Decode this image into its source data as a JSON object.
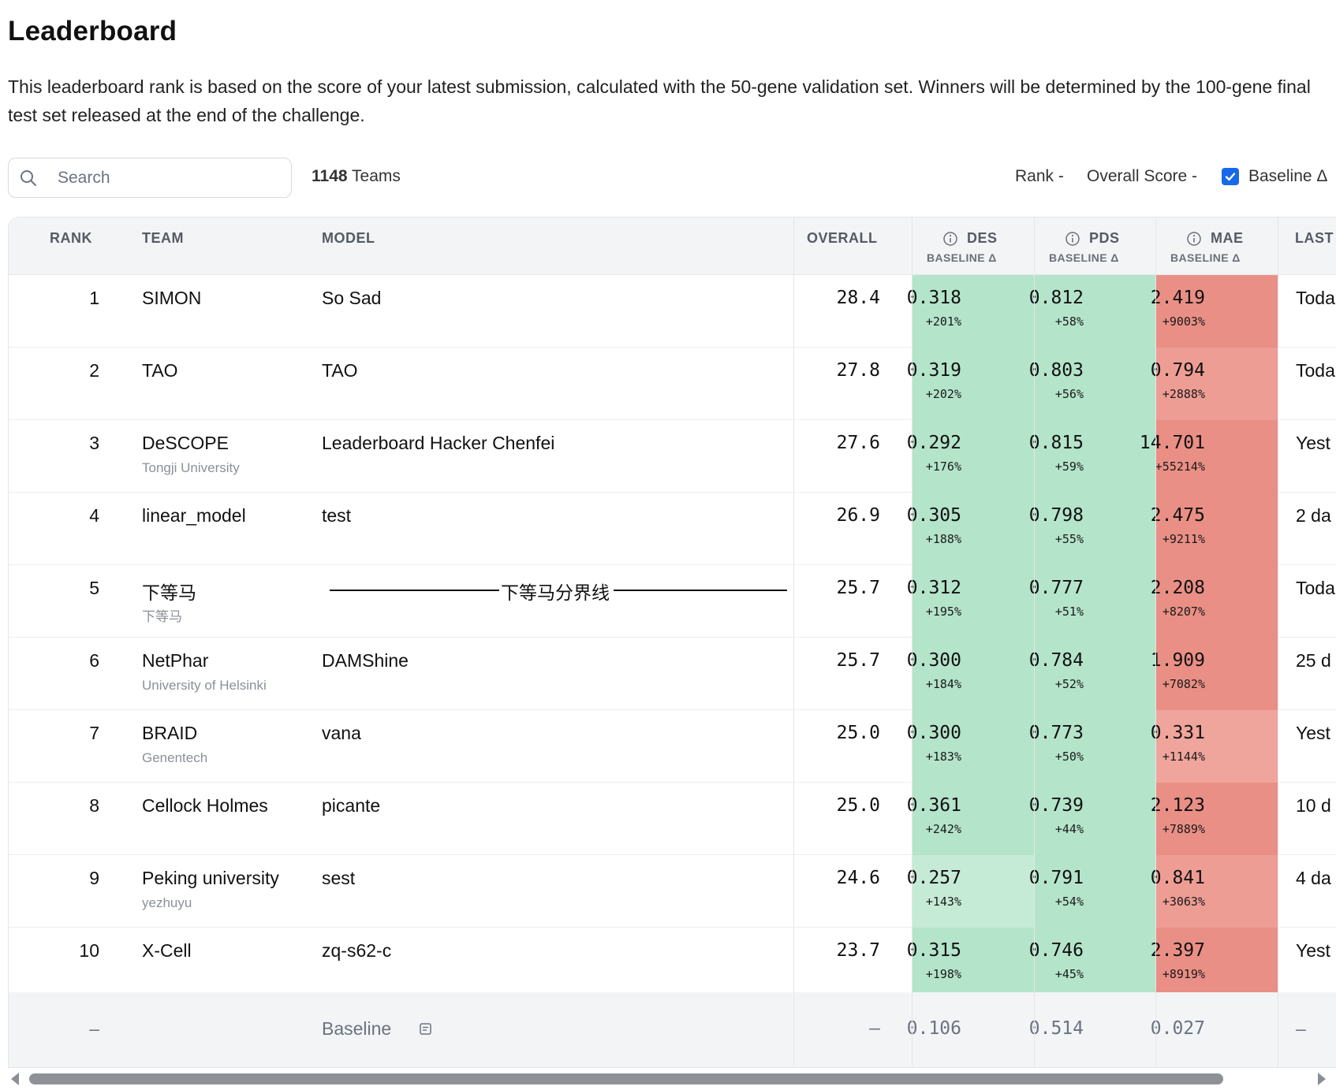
{
  "page": {
    "title": "Leaderboard",
    "description": "This leaderboard rank is based on the score of your latest submission, calculated with the 50-gene validation set. Winners will be determined by the 100-gene final test set released at the end of the challenge."
  },
  "toolbar": {
    "search_placeholder": "Search",
    "team_count": "1148",
    "team_count_suffix": " Teams",
    "sort_rank_label": "Rank -",
    "sort_overall_label": "Overall Score -",
    "baseline_toggle_label": "Baseline Δ",
    "baseline_checked": true
  },
  "table": {
    "headers": {
      "rank": "RANK",
      "team": "TEAM",
      "model": "MODEL",
      "overall": "OVERALL",
      "des": "DES",
      "pds": "PDS",
      "mae": "MAE",
      "metric_sub": "BASELINE Δ",
      "last": "LAST"
    },
    "rows": [
      {
        "rank": "1",
        "team": "SIMON",
        "affiliation": "",
        "model": "So Sad",
        "overall": "28.4",
        "des": "0.318",
        "des_delta": "+201%",
        "pds": "0.812",
        "pds_delta": "+58%",
        "mae": "2.419",
        "mae_delta": "+9003%",
        "last": "Toda"
      },
      {
        "rank": "2",
        "team": "TAO",
        "affiliation": "",
        "model": "TAO",
        "overall": "27.8",
        "des": "0.319",
        "des_delta": "+202%",
        "pds": "0.803",
        "pds_delta": "+56%",
        "mae": "0.794",
        "mae_delta": "+2888%",
        "last": "Toda"
      },
      {
        "rank": "3",
        "team": "DeSCOPE",
        "affiliation": "Tongji University",
        "model": "Leaderboard Hacker Chenfei",
        "overall": "27.6",
        "des": "0.292",
        "des_delta": "+176%",
        "pds": "0.815",
        "pds_delta": "+59%",
        "mae": "14.701",
        "mae_delta": "+55214%",
        "last": "Yest"
      },
      {
        "rank": "4",
        "team": "linear_model",
        "affiliation": "",
        "model": "test",
        "overall": "26.9",
        "des": "0.305",
        "des_delta": "+188%",
        "pds": "0.798",
        "pds_delta": "+55%",
        "mae": "2.475",
        "mae_delta": "+9211%",
        "last": "2 da"
      },
      {
        "rank": "5",
        "team": "下等马",
        "affiliation": "下等马",
        "model": "下等马分界线",
        "overall": "25.7",
        "des": "0.312",
        "des_delta": "+195%",
        "pds": "0.777",
        "pds_delta": "+51%",
        "mae": "2.208",
        "mae_delta": "+8207%",
        "last": "Toda"
      },
      {
        "rank": "6",
        "team": "NetPhar",
        "affiliation": "University of Helsinki",
        "model": "DAMShine",
        "overall": "25.7",
        "des": "0.300",
        "des_delta": "+184%",
        "pds": "0.784",
        "pds_delta": "+52%",
        "mae": "1.909",
        "mae_delta": "+7082%",
        "last": "25 d"
      },
      {
        "rank": "7",
        "team": "BRAID",
        "affiliation": "Genentech",
        "model": "vana",
        "overall": "25.0",
        "des": "0.300",
        "des_delta": "+183%",
        "pds": "0.773",
        "pds_delta": "+50%",
        "mae": "0.331",
        "mae_delta": "+1144%",
        "last": "Yest"
      },
      {
        "rank": "8",
        "team": "Cellock Holmes",
        "affiliation": "",
        "model": "picante",
        "overall": "25.0",
        "des": "0.361",
        "des_delta": "+242%",
        "pds": "0.739",
        "pds_delta": "+44%",
        "mae": "2.123",
        "mae_delta": "+7889%",
        "last": "10 d"
      },
      {
        "rank": "9",
        "team": "Peking university",
        "affiliation": "yezhuyu",
        "model": "sest",
        "overall": "24.6",
        "des": "0.257",
        "des_delta": "+143%",
        "pds": "0.791",
        "pds_delta": "+54%",
        "mae": "0.841",
        "mae_delta": "+3063%",
        "last": "4 da"
      },
      {
        "rank": "10",
        "team": "X-Cell",
        "affiliation": "",
        "model": "zq-s62-c",
        "overall": "23.7",
        "des": "0.315",
        "des_delta": "+198%",
        "pds": "0.746",
        "pds_delta": "+45%",
        "mae": "2.397",
        "mae_delta": "+8919%",
        "last": "Yest"
      }
    ],
    "baseline_row": {
      "rank": "–",
      "model": "Baseline",
      "overall": "–",
      "des": "0.106",
      "pds": "0.514",
      "mae": "0.027",
      "last": "–"
    }
  },
  "colors": {
    "green_strong": "#b4e4ca",
    "green_light": "#c5ead6",
    "red_strong": "#ea8f85",
    "red_medium": "#ee9d94",
    "red_light": "#f0a59c",
    "checkbox_blue": "#1769e8"
  },
  "icons": {
    "search": "search-icon",
    "info": "info-icon",
    "note": "note-icon",
    "check": "check-icon"
  }
}
